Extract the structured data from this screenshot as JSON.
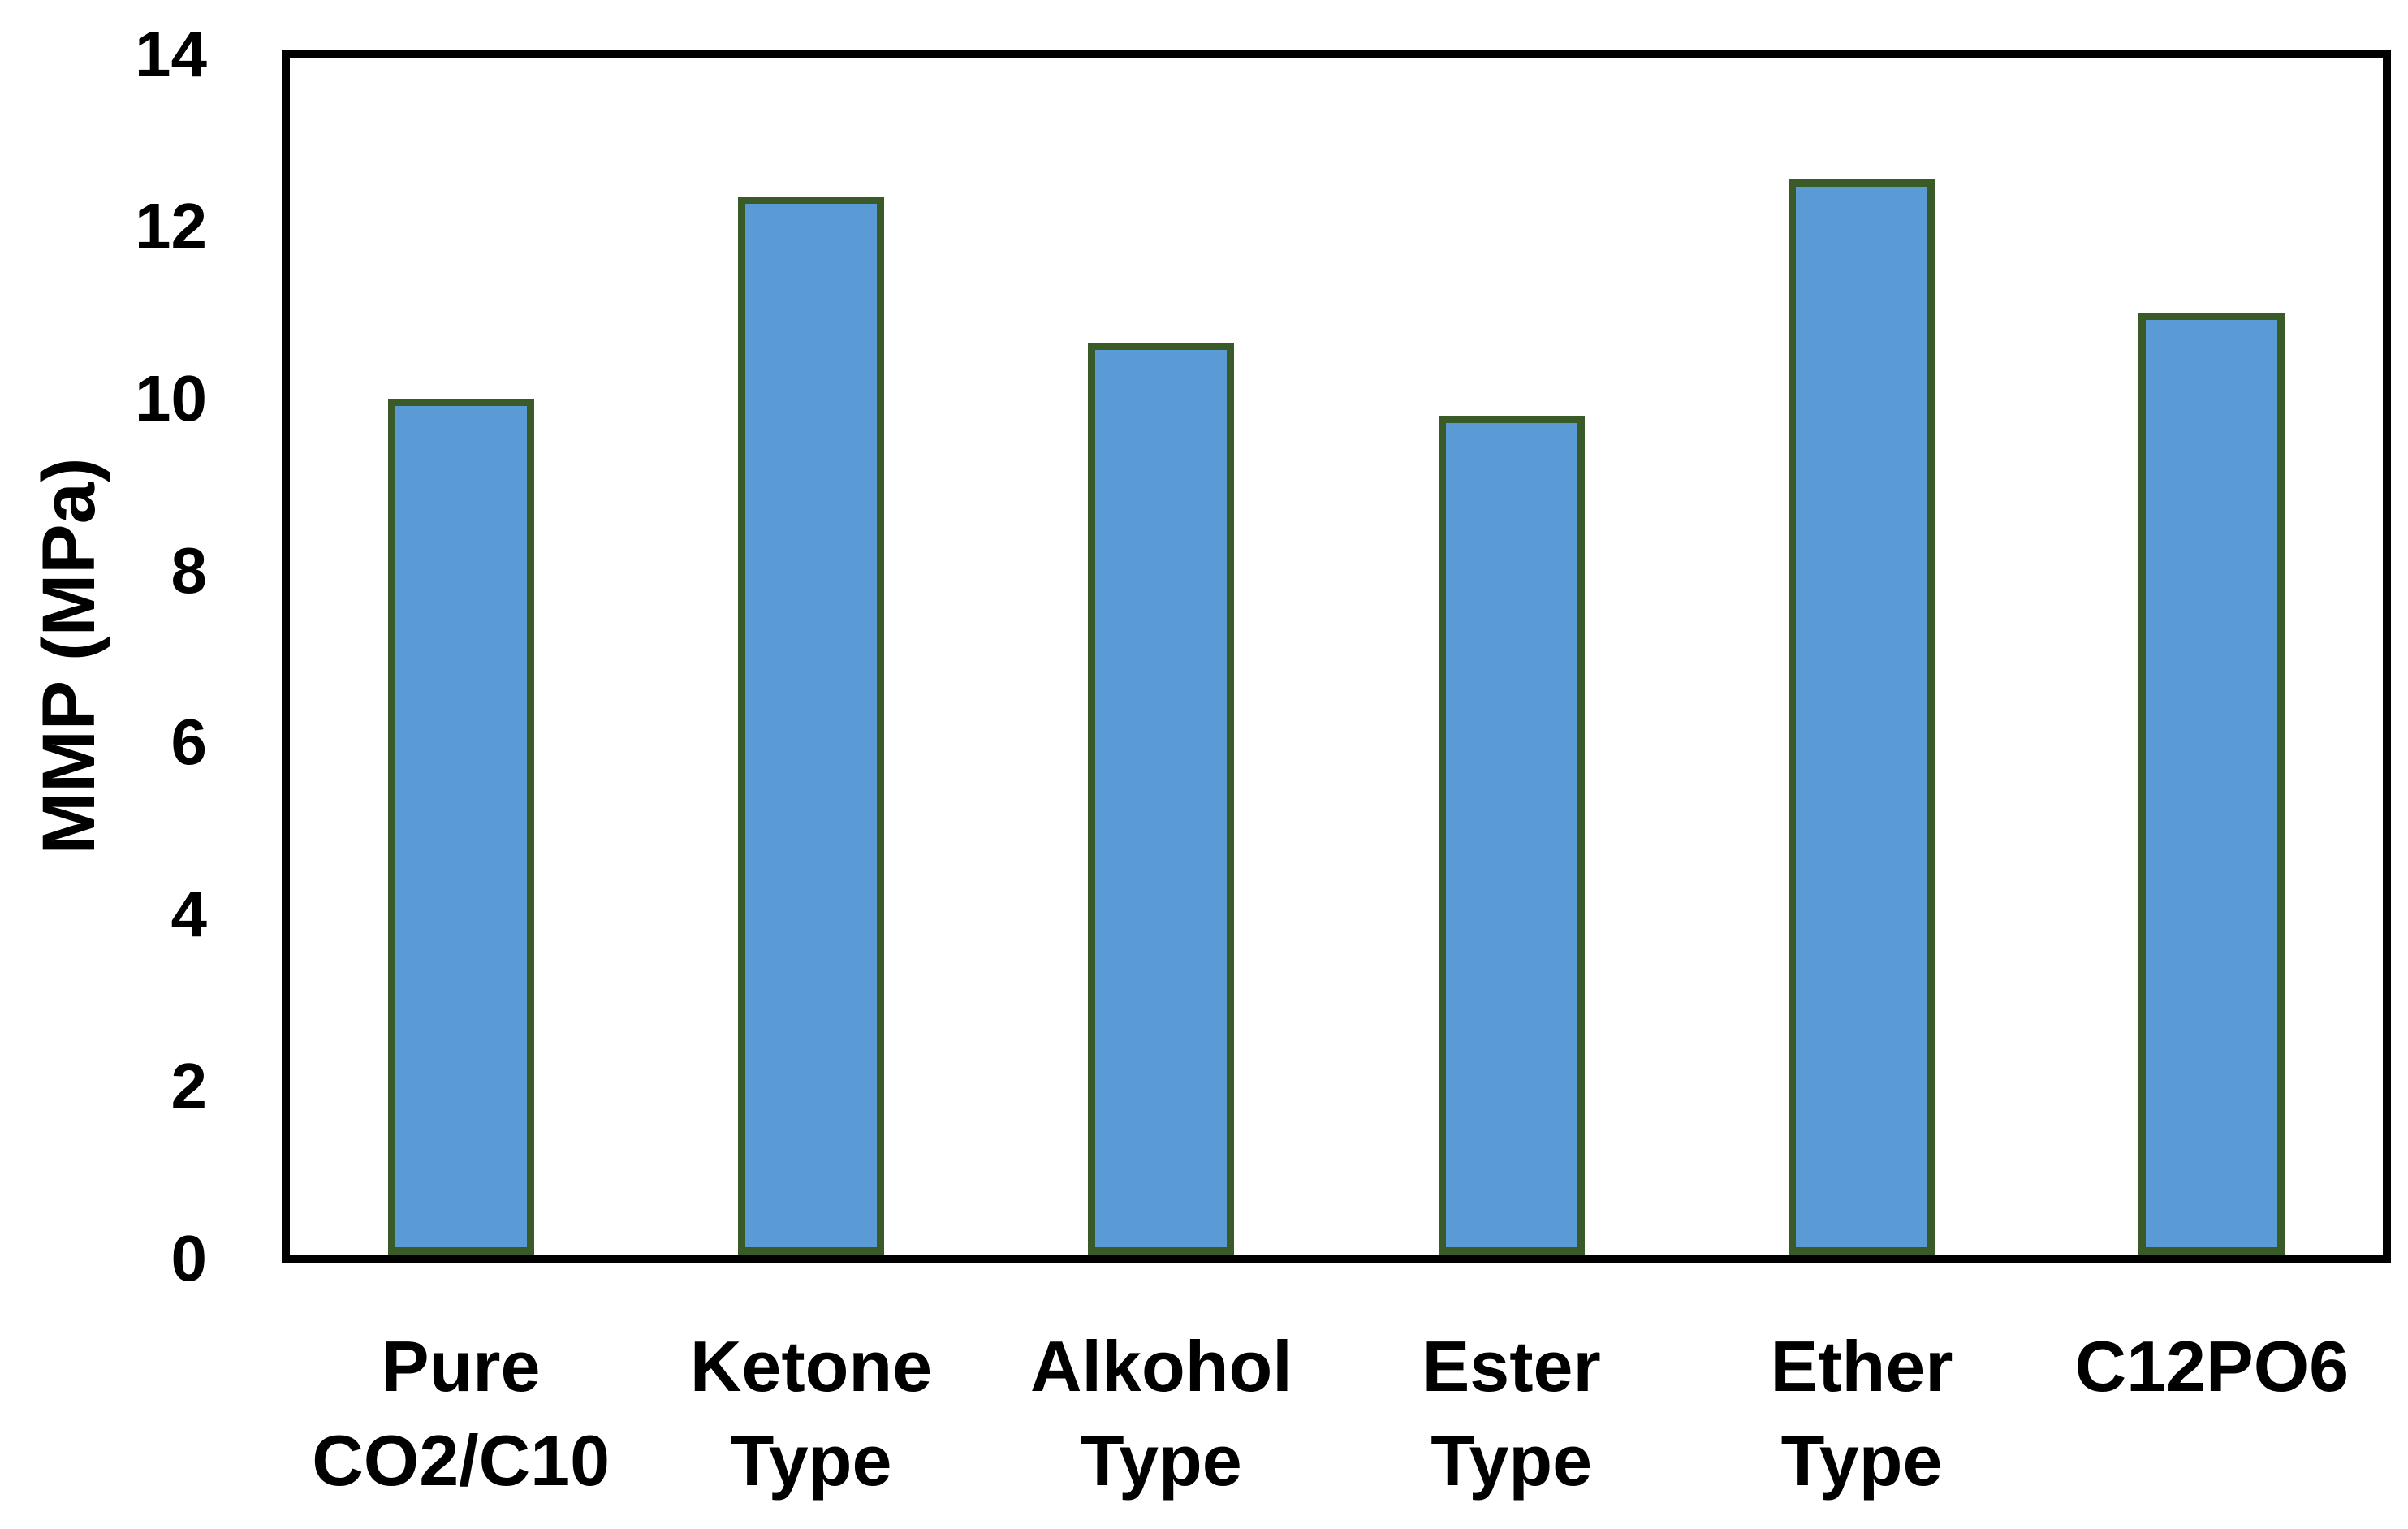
{
  "chart_data": {
    "type": "bar",
    "title": "",
    "xlabel": "",
    "ylabel": "MMP (MPa)",
    "categories": [
      "Pure\nCO2/C10",
      "Ketone\nType",
      "Alkohol\nType",
      "Ester\nType",
      "Ether\nType",
      "C12PO6"
    ],
    "values": [
      10.0,
      12.35,
      10.65,
      9.8,
      12.55,
      11.0
    ],
    "ylim": [
      0,
      14
    ],
    "yticks": [
      0,
      2,
      4,
      6,
      8,
      10,
      12,
      14
    ],
    "grid": false,
    "legend": false,
    "colors": {
      "bar_fill": "#5B9BD5",
      "bar_border": "#3A5A28",
      "axis": "#000000",
      "text": "#000000"
    }
  }
}
